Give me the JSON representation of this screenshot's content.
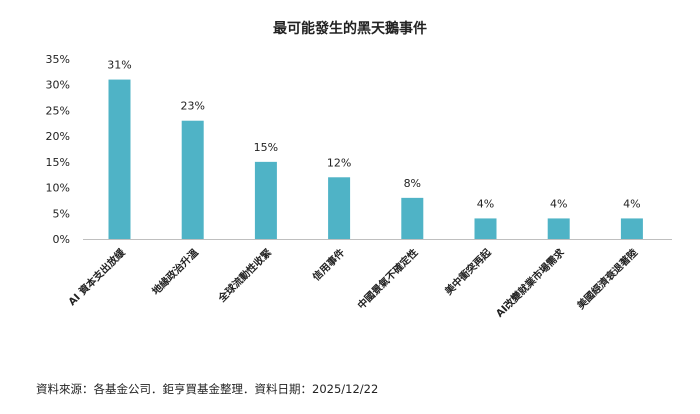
{
  "chart_data": {
    "type": "bar",
    "title": "最可能發生的黑天鵝事件",
    "categories": [
      "AI 資本支出放緩",
      "地緣政治升溫",
      "全球流動性收緊",
      "信用事件",
      "中國景氣不確定性",
      "美中衝突再起",
      "AI改變就業市場需求",
      "美國經濟衰退著陸"
    ],
    "values": [
      31,
      23,
      15,
      12,
      8,
      4,
      4,
      4
    ],
    "data_labels": [
      "31%",
      "23%",
      "15%",
      "12%",
      "8%",
      "4%",
      "4%",
      "4%"
    ],
    "yticks": [
      "0%",
      "5%",
      "10%",
      "15%",
      "20%",
      "25%",
      "30%",
      "35%"
    ],
    "ylim": [
      0,
      35
    ],
    "bar_color": "#4fb3c6",
    "grid": false,
    "legend": "none"
  },
  "source": "資料來源：各基金公司．鉅亨買基金整理．資料日期：2025/12/22"
}
